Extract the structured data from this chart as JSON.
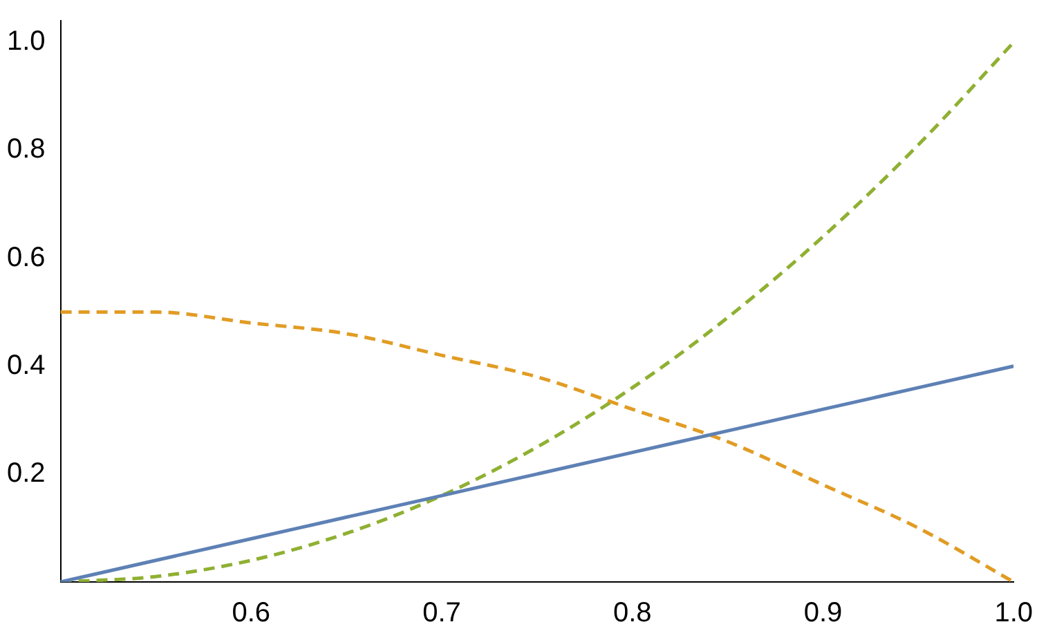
{
  "chart_data": {
    "type": "line",
    "x": [
      0.5,
      0.55,
      0.6,
      0.65,
      0.7,
      0.75,
      0.8,
      0.85,
      0.9,
      0.95,
      1.0
    ],
    "series": [
      {
        "color": "#5e81b5",
        "line_style": "solid",
        "values": [
          0,
          0.04,
          0.08,
          0.12,
          0.16,
          0.2,
          0.24,
          0.28,
          0.32,
          0.36,
          0.4
        ]
      },
      {
        "color": "#e19c24",
        "line_style": "dashed",
        "values": [
          0.5,
          0.5,
          0.48,
          0.46,
          0.42,
          0.38,
          0.32,
          0.26,
          0.18,
          0.1,
          0
        ]
      },
      {
        "color": "#8fb032",
        "line_style": "dashed",
        "values": [
          0,
          0.01,
          0.04,
          0.09,
          0.16,
          0.25,
          0.36,
          0.49,
          0.64,
          0.81,
          1
        ]
      }
    ],
    "xlim": [
      0.5,
      1.0
    ],
    "ylim": [
      0,
      1.04
    ],
    "xticks": [
      0.6,
      0.7,
      0.8,
      0.9,
      {
        "value": 1,
        "label": "1.0"
      }
    ],
    "yticks": [
      0.2,
      0.4,
      0.6,
      0.8,
      {
        "value": 1,
        "label": "1.0"
      }
    ],
    "grid": false,
    "legend": false,
    "marker": "none"
  }
}
